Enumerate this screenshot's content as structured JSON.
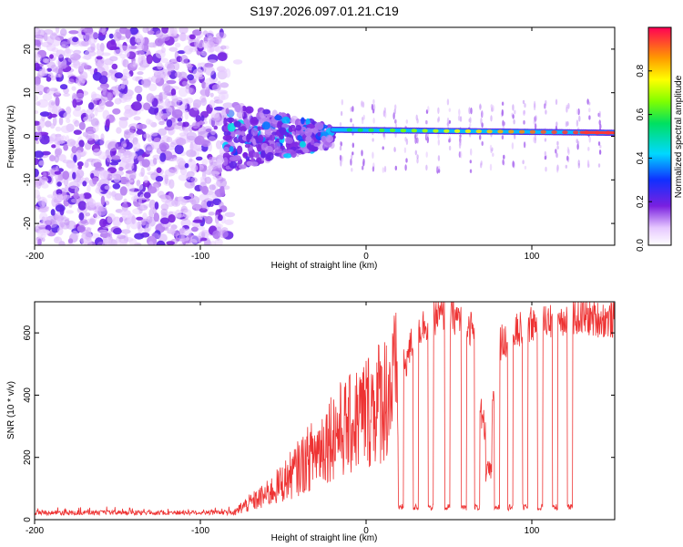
{
  "figure": {
    "title": "S197.2026.097.01.21.C19"
  },
  "chart_data": [
    {
      "type": "heatmap",
      "title": "S197.2026.097.01.21.C19",
      "xlabel": "Height of straight line (km)",
      "ylabel": "Frequency (Hz)",
      "xlim": [
        -200,
        150
      ],
      "ylim": [
        -25,
        25
      ],
      "xticks": [
        -200,
        -100,
        0,
        100
      ],
      "yticks": [
        -20,
        -10,
        0,
        10,
        20
      ],
      "colorbar": {
        "label": "Normalized spectral amplitude",
        "range": [
          0,
          1
        ],
        "ticks": [
          "0.0",
          "0.2",
          "0.4",
          "0.6",
          "0.8"
        ]
      },
      "regions": [
        {
          "name": "noise",
          "x_range": [
            -200,
            -85
          ],
          "freq_range": [
            -25,
            25
          ],
          "amplitude": 0.15
        },
        {
          "name": "transition",
          "x_range": [
            -85,
            -20
          ],
          "freq_range": [
            -8,
            8
          ],
          "amplitude": 0.25
        },
        {
          "name": "carrier",
          "x_range": [
            -20,
            150
          ],
          "freq_start": 1.5,
          "freq_end": 0.8,
          "amplitude": 0.95
        }
      ]
    },
    {
      "type": "line",
      "xlabel": "Height of straight line (km)",
      "ylabel": "SNR (10 * v/v)",
      "xlim": [
        -200,
        150
      ],
      "ylim": [
        0,
        700
      ],
      "xticks": [
        -200,
        -100,
        0,
        100
      ],
      "yticks": [
        0,
        200,
        400,
        600
      ],
      "color": "#ee3333",
      "profile": [
        [
          -200,
          15
        ],
        [
          -80,
          18
        ],
        [
          -75,
          40
        ],
        [
          -60,
          80
        ],
        [
          -50,
          120
        ],
        [
          -40,
          170
        ],
        [
          -30,
          220
        ],
        [
          -20,
          280
        ],
        [
          -10,
          300
        ],
        [
          0,
          350
        ],
        [
          10,
          390
        ],
        [
          20,
          450
        ],
        [
          30,
          600
        ],
        [
          40,
          650
        ],
        [
          50,
          660
        ],
        [
          60,
          640
        ],
        [
          65,
          600
        ],
        [
          70,
          300
        ],
        [
          75,
          260
        ],
        [
          80,
          560
        ],
        [
          90,
          600
        ],
        [
          100,
          630
        ],
        [
          110,
          640
        ],
        [
          120,
          650
        ],
        [
          130,
          650
        ],
        [
          150,
          640
        ]
      ],
      "dropouts": [
        21,
        30,
        39,
        49,
        59,
        67,
        79,
        87,
        96,
        105,
        114,
        123
      ]
    }
  ]
}
